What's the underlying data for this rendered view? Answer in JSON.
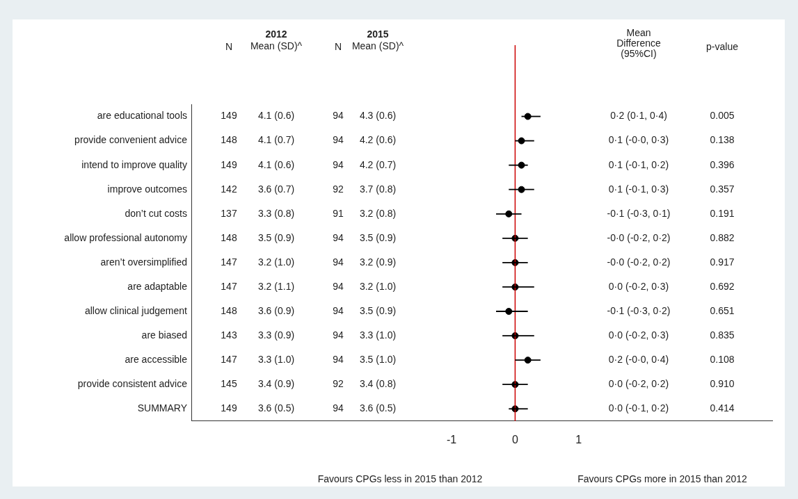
{
  "chart_data": {
    "type": "scatter",
    "orientation": "horizontal",
    "categories": [
      "are educational tools",
      "provide convenient advice",
      "intend to improve quality",
      "improve outcomes",
      "don’t cut costs",
      "allow professional autonomy",
      "aren’t oversimplified",
      "are adaptable",
      "allow clinical judgement",
      "are biased",
      "are accessible",
      "provide consistent advice",
      "SUMMARY"
    ],
    "series": [
      {
        "color": "#000000",
        "values": [
          0.2,
          0.1,
          0.1,
          0.1,
          -0.1,
          0,
          0,
          0,
          -0.1,
          0,
          0.2,
          0,
          0
        ],
        "errors": [
          [
            0.1,
            0.4
          ],
          [
            0,
            0.3
          ],
          [
            -0.1,
            0.2
          ],
          [
            -0.1,
            0.3
          ],
          [
            -0.3,
            0.1
          ],
          [
            -0.2,
            0.2
          ],
          [
            -0.2,
            0.2
          ],
          [
            -0.2,
            0.3
          ],
          [
            -0.3,
            0.2
          ],
          [
            -0.2,
            0.3
          ],
          [
            0,
            0.4
          ],
          [
            -0.2,
            0.2
          ],
          [
            -0.1,
            0.2
          ]
        ]
      }
    ],
    "marker": "circle",
    "xlim": [
      -5.1,
      4.05
    ],
    "xticks": [
      -1,
      0,
      1
    ],
    "ref_lines": [
      {
        "axis": "x",
        "value": 0,
        "color": "#cc0000"
      }
    ],
    "grid": false,
    "legend": false,
    "annotations": [
      "N",
      "2012",
      "Mean (SD)^",
      "N",
      "2015",
      "Mean (SD)^",
      "Mean Difference (95%CI)",
      "p-value",
      "Favours CPGs less in 2015 than 2012",
      "Favours CPGs more in 2015 than 2012",
      "149",
      "4.1 (0.6)",
      "94",
      "4.3 (0.6)",
      "0·2 (0·1, 0·4)",
      "0.005",
      "148",
      "4.1 (0.7)",
      "94",
      "4.2 (0.6)",
      "0·1 (-0·0, 0·3)",
      "0.138",
      "149",
      "4.1 (0.6)",
      "94",
      "4.2 (0.7)",
      "0·1 (-0·1, 0·2)",
      "0.396",
      "142",
      "3.6 (0.7)",
      "92",
      "3.7 (0.8)",
      "0·1 (-0·1, 0·3)",
      "0.357",
      "137",
      "3.3 (0.8)",
      "91",
      "3.2 (0.8)",
      "-0·1 (-0·3, 0·1)",
      "0.191",
      "148",
      "3.5 (0.9)",
      "94",
      "3.5 (0.9)",
      "-0·0 (-0·2, 0·2)",
      "0.882",
      "147",
      "3.2 (1.0)",
      "94",
      "3.2 (0.9)",
      "-0·0 (-0·2, 0·2)",
      "0.917",
      "147",
      "3.2 (1.1)",
      "94",
      "3.2 (1.0)",
      "0·0 (-0·2, 0·3)",
      "0.692",
      "148",
      "3.6 (0.9)",
      "94",
      "3.5 (0.9)",
      "-0·1 (-0·3, 0·2)",
      "0.651",
      "143",
      "3.3 (0.9)",
      "94",
      "3.3 (1.0)",
      "0·0 (-0·2, 0·3)",
      "0.835",
      "147",
      "3.3 (1.0)",
      "94",
      "3.5 (1.0)",
      "0·2 (-0·0, 0·4)",
      "0.108",
      "145",
      "3.4 (0.9)",
      "92",
      "3.4 (0.8)",
      "0·0 (-0·2, 0·2)",
      "0.910",
      "149",
      "3.6 (0.5)",
      "94",
      "3.6 (0.5)",
      "0·0 (-0·1, 0·2)",
      "0.414"
    ]
  }
}
